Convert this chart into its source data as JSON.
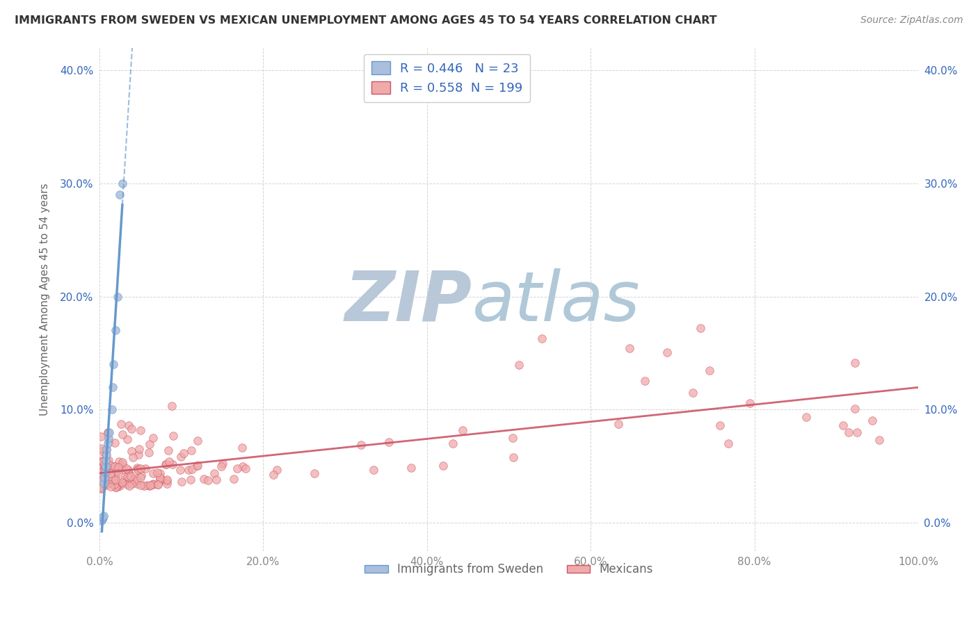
{
  "title": "IMMIGRANTS FROM SWEDEN VS MEXICAN UNEMPLOYMENT AMONG AGES 45 TO 54 YEARS CORRELATION CHART",
  "source": "Source: ZipAtlas.com",
  "ylabel": "Unemployment Among Ages 45 to 54 years",
  "xlim": [
    0.0,
    100.0
  ],
  "ylim": [
    -2.5,
    42.0
  ],
  "xticks": [
    0.0,
    20.0,
    40.0,
    60.0,
    80.0,
    100.0
  ],
  "xticklabels": [
    "0.0%",
    "20.0%",
    "40.0%",
    "60.0%",
    "80.0%",
    "100.0%"
  ],
  "yticks": [
    0.0,
    10.0,
    20.0,
    30.0,
    40.0
  ],
  "yticklabels": [
    "0.0%",
    "10.0%",
    "20.0%",
    "30.0%",
    "40.0%"
  ],
  "background_color": "#ffffff",
  "grid_color": "#c8c8c8",
  "title_color": "#333333",
  "axis_label_color": "#666666",
  "tick_color": "#888888",
  "watermark_zip": "ZIP",
  "watermark_atlas": "atlas",
  "watermark_color_zip": "#b8c8d8",
  "watermark_color_atlas": "#b0c8d8",
  "sweden_color": "#6699cc",
  "sweden_fill": "#aabedd",
  "sweden_R": 0.446,
  "sweden_N": 23,
  "sweden_x": [
    0.3,
    0.35,
    0.4,
    0.45,
    0.5,
    0.55,
    0.6,
    0.65,
    0.7,
    0.75,
    0.8,
    0.85,
    0.9,
    1.0,
    1.1,
    1.2,
    1.5,
    1.6,
    1.7,
    2.0,
    2.2,
    2.5,
    2.8
  ],
  "sweden_y": [
    0.2,
    0.3,
    0.4,
    0.5,
    0.6,
    3.5,
    4.0,
    4.5,
    4.5,
    5.0,
    5.5,
    6.0,
    6.5,
    7.0,
    7.5,
    8.0,
    10.0,
    12.0,
    14.0,
    17.0,
    20.0,
    29.0,
    30.0
  ],
  "sweden_trend_x0": 0.0,
  "sweden_trend_x1": 3.0,
  "sweden_solid_x0": 0.3,
  "sweden_solid_x1": 2.8,
  "mexico_color": "#cc5566",
  "mexico_fill": "#f0aaaa",
  "mexico_R": 0.558,
  "mexico_N": 199,
  "mexico_seed": 42,
  "legend_color": "#3366bb",
  "legend_fontsize": 13,
  "title_fontsize": 11.5,
  "axis_label_fontsize": 11,
  "tick_fontsize": 11,
  "source_fontsize": 10
}
